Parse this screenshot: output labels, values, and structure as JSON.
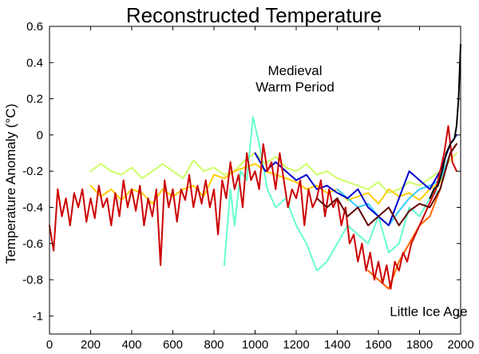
{
  "chart_data": {
    "type": "line",
    "title": "Reconstructed Temperature",
    "xlabel": "",
    "ylabel": "Temperature Anomaly (°C)",
    "xlim": [
      0,
      2000
    ],
    "ylim": [
      -1.1,
      0.6
    ],
    "x_ticks": [
      0,
      200,
      400,
      600,
      800,
      1000,
      1200,
      1400,
      1600,
      1800,
      2000
    ],
    "x_tick_labels": [
      "0",
      "200",
      "400",
      "600",
      "800",
      "1000",
      "1200",
      "1400",
      "1600",
      "1800",
      "2000"
    ],
    "y_ticks": [
      0.6,
      0.4,
      0.2,
      0,
      -0.2,
      -0.4,
      -0.6,
      -0.8,
      -1
    ],
    "y_tick_labels": [
      "0.6",
      "0.4",
      "0.2",
      "0",
      "-0.2",
      "-0.4",
      "-0.6",
      "-0.8",
      "-1"
    ],
    "grid": false,
    "annotations": [
      {
        "lines": [
          "Medieval",
          "Warm Period"
        ],
        "x": 1000,
        "y": 0.33
      },
      {
        "lines": [
          "Little Ice Age"
        ],
        "x": 1650,
        "y": -1.0
      }
    ],
    "series": [
      {
        "color": "#ccff66",
        "x": [
          200,
          250,
          300,
          350,
          400,
          450,
          500,
          550,
          600,
          650,
          700,
          750,
          800,
          850,
          900,
          950,
          1000,
          1050,
          1100,
          1150,
          1200,
          1250,
          1300,
          1350,
          1400,
          1450,
          1500,
          1550,
          1600,
          1650,
          1700,
          1750,
          1800,
          1850,
          1900,
          1950,
          1980
        ],
        "y": [
          -0.2,
          -0.16,
          -0.2,
          -0.22,
          -0.18,
          -0.24,
          -0.2,
          -0.16,
          -0.2,
          -0.24,
          -0.14,
          -0.2,
          -0.18,
          -0.22,
          -0.2,
          -0.14,
          -0.1,
          -0.16,
          -0.12,
          -0.18,
          -0.2,
          -0.16,
          -0.22,
          -0.2,
          -0.24,
          -0.26,
          -0.28,
          -0.3,
          -0.26,
          -0.32,
          -0.3,
          -0.26,
          -0.28,
          -0.24,
          -0.2,
          -0.14,
          -0.1
        ]
      },
      {
        "color": "#ffcc00",
        "x": [
          200,
          250,
          300,
          350,
          400,
          450,
          500,
          550,
          600,
          650,
          700,
          750,
          800,
          850,
          900,
          950,
          1000,
          1050,
          1100,
          1150,
          1200,
          1250,
          1300,
          1350,
          1400,
          1450,
          1500,
          1550,
          1600,
          1650,
          1700,
          1750,
          1800,
          1850,
          1900,
          1950,
          1980
        ],
        "y": [
          -0.28,
          -0.34,
          -0.3,
          -0.36,
          -0.3,
          -0.32,
          -0.38,
          -0.3,
          -0.34,
          -0.3,
          -0.28,
          -0.34,
          -0.22,
          -0.24,
          -0.2,
          -0.18,
          -0.16,
          -0.2,
          -0.22,
          -0.24,
          -0.26,
          -0.3,
          -0.28,
          -0.32,
          -0.3,
          -0.36,
          -0.34,
          -0.32,
          -0.38,
          -0.3,
          -0.34,
          -0.32,
          -0.36,
          -0.3,
          -0.26,
          -0.1,
          -0.05
        ]
      },
      {
        "color": "#66ffcc",
        "x": [
          850,
          880,
          900,
          930,
          960,
          990,
          1020,
          1060,
          1100,
          1150,
          1200,
          1250,
          1300,
          1350,
          1400,
          1450,
          1500,
          1550,
          1600,
          1650,
          1700,
          1750,
          1800,
          1850,
          1900,
          1950,
          1980
        ],
        "y": [
          -0.72,
          -0.3,
          -0.5,
          -0.2,
          -0.25,
          0.1,
          -0.05,
          -0.3,
          -0.4,
          -0.35,
          -0.5,
          -0.6,
          -0.75,
          -0.7,
          -0.6,
          -0.5,
          -0.55,
          -0.6,
          -0.45,
          -0.65,
          -0.6,
          -0.4,
          -0.45,
          -0.35,
          -0.3,
          -0.1,
          -0.05
        ]
      },
      {
        "color": "#33ccff",
        "x": [
          1400,
          1450,
          1500,
          1550,
          1600,
          1650,
          1700,
          1750,
          1800,
          1850,
          1900,
          1950,
          1980
        ],
        "y": [
          -0.3,
          -0.35,
          -0.4,
          -0.38,
          -0.45,
          -0.5,
          -0.42,
          -0.35,
          -0.3,
          -0.28,
          -0.25,
          -0.1,
          -0.05
        ]
      },
      {
        "color": "#0000cc",
        "x": [
          1000,
          1050,
          1100,
          1150,
          1200,
          1250,
          1300,
          1350,
          1400,
          1450,
          1500,
          1550,
          1600,
          1650,
          1700,
          1750,
          1800,
          1850,
          1900,
          1950,
          1980
        ],
        "y": [
          -0.1,
          -0.2,
          -0.15,
          -0.2,
          -0.25,
          -0.22,
          -0.3,
          -0.28,
          -0.32,
          -0.35,
          -0.3,
          -0.4,
          -0.45,
          -0.5,
          -0.35,
          -0.2,
          -0.25,
          -0.3,
          -0.2,
          -0.05,
          0.0
        ]
      },
      {
        "color": "#ff6600",
        "x": [
          1550,
          1600,
          1650,
          1700,
          1750,
          1800,
          1850,
          1900,
          1950,
          1980
        ],
        "y": [
          -0.75,
          -0.8,
          -0.85,
          -0.7,
          -0.6,
          -0.5,
          -0.45,
          -0.3,
          -0.1,
          -0.05
        ]
      },
      {
        "color": "#cc0000",
        "x": [
          0,
          20,
          40,
          60,
          80,
          100,
          120,
          140,
          160,
          180,
          200,
          220,
          240,
          260,
          280,
          300,
          320,
          340,
          360,
          380,
          400,
          420,
          440,
          460,
          480,
          500,
          520,
          540,
          560,
          580,
          600,
          620,
          640,
          660,
          680,
          700,
          720,
          740,
          760,
          780,
          800,
          820,
          840,
          860,
          880,
          900,
          920,
          940,
          960,
          980,
          1000,
          1020,
          1040,
          1060,
          1080,
          1100,
          1120,
          1140,
          1160,
          1180,
          1200,
          1220,
          1240,
          1260,
          1280,
          1300,
          1320,
          1340,
          1360,
          1380,
          1400,
          1420,
          1440,
          1460,
          1480,
          1500,
          1520,
          1540,
          1560,
          1580,
          1600,
          1620,
          1640,
          1660,
          1680,
          1700,
          1720,
          1740,
          1760,
          1780,
          1800,
          1820,
          1840,
          1860,
          1880,
          1900,
          1920,
          1940,
          1960,
          1980
        ],
        "y": [
          -0.5,
          -0.64,
          -0.3,
          -0.45,
          -0.35,
          -0.5,
          -0.32,
          -0.4,
          -0.3,
          -0.48,
          -0.35,
          -0.46,
          -0.28,
          -0.4,
          -0.35,
          -0.5,
          -0.32,
          -0.45,
          -0.25,
          -0.4,
          -0.3,
          -0.42,
          -0.28,
          -0.5,
          -0.35,
          -0.45,
          -0.3,
          -0.72,
          -0.25,
          -0.4,
          -0.3,
          -0.48,
          -0.3,
          -0.36,
          -0.22,
          -0.4,
          -0.28,
          -0.38,
          -0.25,
          -0.4,
          -0.3,
          -0.55,
          -0.25,
          -0.35,
          -0.15,
          -0.3,
          -0.22,
          -0.4,
          -0.1,
          -0.25,
          -0.2,
          -0.3,
          -0.05,
          -0.2,
          -0.15,
          -0.3,
          -0.1,
          -0.25,
          -0.4,
          -0.3,
          -0.35,
          -0.25,
          -0.5,
          -0.3,
          -0.4,
          -0.35,
          -0.25,
          -0.45,
          -0.3,
          -0.4,
          -0.35,
          -0.5,
          -0.4,
          -0.6,
          -0.55,
          -0.7,
          -0.6,
          -0.75,
          -0.65,
          -0.8,
          -0.7,
          -0.82,
          -0.72,
          -0.85,
          -0.7,
          -0.75,
          -0.65,
          -0.7,
          -0.6,
          -0.55,
          -0.5,
          -0.45,
          -0.4,
          -0.35,
          -0.3,
          -0.2,
          -0.1,
          0.05,
          -0.15,
          -0.2
        ]
      },
      {
        "color": "#660000",
        "x": [
          1300,
          1350,
          1400,
          1450,
          1500,
          1550,
          1600,
          1650,
          1700,
          1750,
          1800,
          1850,
          1900,
          1950,
          1980
        ],
        "y": [
          -0.35,
          -0.4,
          -0.35,
          -0.45,
          -0.4,
          -0.5,
          -0.45,
          -0.4,
          -0.5,
          -0.42,
          -0.38,
          -0.4,
          -0.3,
          -0.1,
          -0.05
        ]
      },
      {
        "color": "#000000",
        "x": [
          1850,
          1870,
          1890,
          1910,
          1930,
          1950,
          1970,
          1980,
          1990,
          1995,
          2000
        ],
        "y": [
          -0.35,
          -0.3,
          -0.28,
          -0.2,
          -0.1,
          -0.05,
          -0.02,
          0.05,
          0.2,
          0.35,
          0.5
        ]
      }
    ]
  }
}
